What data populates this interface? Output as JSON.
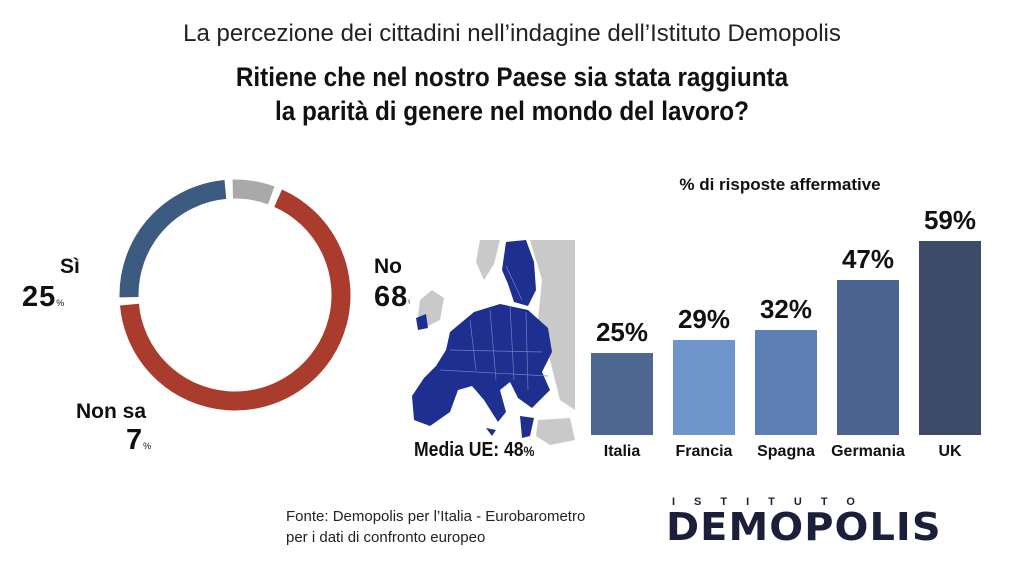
{
  "header": {
    "subtitle": "La percezione dei cittadini nell’indagine dell’Istituto Demopolis",
    "title_line1": "Ritiene che nel nostro Paese sia stata raggiunta",
    "title_line2": "la parità di genere nel mondo del lavoro?"
  },
  "donut": {
    "si": {
      "label": "Sì",
      "value": "25",
      "unit": "%"
    },
    "no": {
      "label": "No",
      "value": "68",
      "unit": "%"
    },
    "nonsa": {
      "label": "Non sa",
      "value": "7",
      "unit": "%"
    }
  },
  "map": {
    "media_label": "Media UE: 48",
    "media_unit": "%"
  },
  "bars": {
    "title": "% di risposte affermative"
  },
  "source": {
    "line1": "Fonte: Demopolis per l’Italia - Eurobarometro",
    "line2": "per i dati di confronto europeo"
  },
  "logo": {
    "top": "ISTITUTO",
    "main": "DEMOPOLIS"
  },
  "colors": {
    "no": "#a93c2c",
    "si": "#3d5a80",
    "nonsa": "#a9a9a9",
    "italia": "#4e6790",
    "francia": "#6e95cc",
    "spagna": "#5e7fb5",
    "germania": "#4a6390",
    "uk": "#3b4b68",
    "eu": "#1e2f8f",
    "land": "#c9c9c9"
  },
  "chart_data": [
    {
      "type": "pie",
      "title": "Ritiene che nel nostro Paese sia stata raggiunta la parità di genere nel mondo del lavoro?",
      "categories": [
        "No",
        "Sì",
        "Non sa"
      ],
      "values": [
        68,
        25,
        7
      ],
      "unit": "%"
    },
    {
      "type": "bar",
      "title": "% di risposte affermative",
      "categories": [
        "Italia",
        "Francia",
        "Spagna",
        "Germania",
        "UK"
      ],
      "values": [
        25,
        29,
        32,
        47,
        59
      ],
      "value_labels": [
        "25%",
        "29%",
        "32%",
        "47%",
        "59%"
      ],
      "ylim": [
        0,
        59
      ]
    }
  ]
}
